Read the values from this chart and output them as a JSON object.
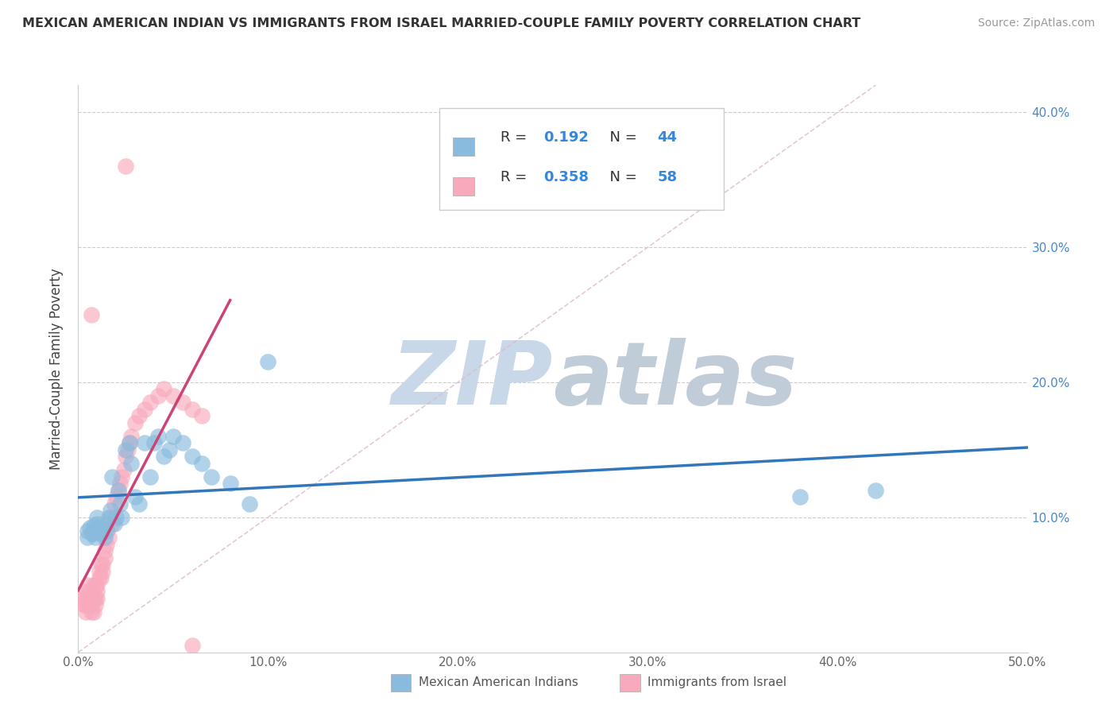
{
  "title": "MEXICAN AMERICAN INDIAN VS IMMIGRANTS FROM ISRAEL MARRIED-COUPLE FAMILY POVERTY CORRELATION CHART",
  "source": "Source: ZipAtlas.com",
  "ylabel": "Married-Couple Family Poverty",
  "xlim": [
    0.0,
    0.5
  ],
  "ylim": [
    0.0,
    0.42
  ],
  "xticks": [
    0.0,
    0.1,
    0.2,
    0.3,
    0.4,
    0.5
  ],
  "xtick_labels": [
    "0.0%",
    "10.0%",
    "20.0%",
    "30.0%",
    "40.0%",
    "50.0%"
  ],
  "yticks": [
    0.1,
    0.2,
    0.3,
    0.4
  ],
  "ytick_labels": [
    "10.0%",
    "20.0%",
    "30.0%",
    "40.0%"
  ],
  "legend_labels": [
    "Mexican American Indians",
    "Immigrants from Israel"
  ],
  "r_blue": 0.192,
  "n_blue": 44,
  "r_pink": 0.358,
  "n_pink": 58,
  "blue_color": "#88bbdd",
  "pink_color": "#f8aabc",
  "blue_line_color": "#3377bb",
  "pink_line_color": "#cc4477",
  "diag_line_color": "#ddbbcc",
  "watermark_zip_color": "#c8d8e8",
  "watermark_atlas_color": "#c0ccd8",
  "blue_x": [
    0.005,
    0.005,
    0.006,
    0.007,
    0.008,
    0.008,
    0.009,
    0.01,
    0.01,
    0.011,
    0.012,
    0.013,
    0.014,
    0.015,
    0.015,
    0.016,
    0.017,
    0.018,
    0.019,
    0.02,
    0.021,
    0.022,
    0.023,
    0.025,
    0.027,
    0.028,
    0.03,
    0.032,
    0.035,
    0.038,
    0.04,
    0.042,
    0.045,
    0.048,
    0.05,
    0.055,
    0.06,
    0.065,
    0.07,
    0.08,
    0.09,
    0.1,
    0.38,
    0.42
  ],
  "blue_y": [
    0.09,
    0.085,
    0.092,
    0.088,
    0.094,
    0.088,
    0.085,
    0.1,
    0.095,
    0.092,
    0.088,
    0.09,
    0.085,
    0.09,
    0.095,
    0.1,
    0.105,
    0.13,
    0.095,
    0.1,
    0.12,
    0.11,
    0.1,
    0.15,
    0.155,
    0.14,
    0.115,
    0.11,
    0.155,
    0.13,
    0.155,
    0.16,
    0.145,
    0.15,
    0.16,
    0.155,
    0.145,
    0.14,
    0.13,
    0.125,
    0.11,
    0.215,
    0.115,
    0.12
  ],
  "pink_x": [
    0.002,
    0.003,
    0.003,
    0.004,
    0.004,
    0.005,
    0.005,
    0.005,
    0.006,
    0.006,
    0.007,
    0.007,
    0.007,
    0.008,
    0.008,
    0.008,
    0.009,
    0.009,
    0.009,
    0.01,
    0.01,
    0.01,
    0.011,
    0.011,
    0.012,
    0.012,
    0.013,
    0.013,
    0.014,
    0.014,
    0.015,
    0.015,
    0.016,
    0.017,
    0.018,
    0.019,
    0.02,
    0.021,
    0.022,
    0.023,
    0.024,
    0.025,
    0.026,
    0.027,
    0.028,
    0.03,
    0.032,
    0.035,
    0.038,
    0.042,
    0.045,
    0.05,
    0.055,
    0.06,
    0.065,
    0.007,
    0.025,
    0.06
  ],
  "pink_y": [
    0.04,
    0.035,
    0.04,
    0.03,
    0.035,
    0.04,
    0.045,
    0.05,
    0.04,
    0.045,
    0.03,
    0.035,
    0.04,
    0.03,
    0.04,
    0.05,
    0.035,
    0.04,
    0.05,
    0.04,
    0.045,
    0.05,
    0.055,
    0.06,
    0.055,
    0.065,
    0.06,
    0.065,
    0.07,
    0.075,
    0.08,
    0.09,
    0.085,
    0.1,
    0.095,
    0.11,
    0.115,
    0.12,
    0.125,
    0.13,
    0.135,
    0.145,
    0.15,
    0.155,
    0.16,
    0.17,
    0.175,
    0.18,
    0.185,
    0.19,
    0.195,
    0.19,
    0.185,
    0.18,
    0.175,
    0.25,
    0.36,
    0.005
  ]
}
